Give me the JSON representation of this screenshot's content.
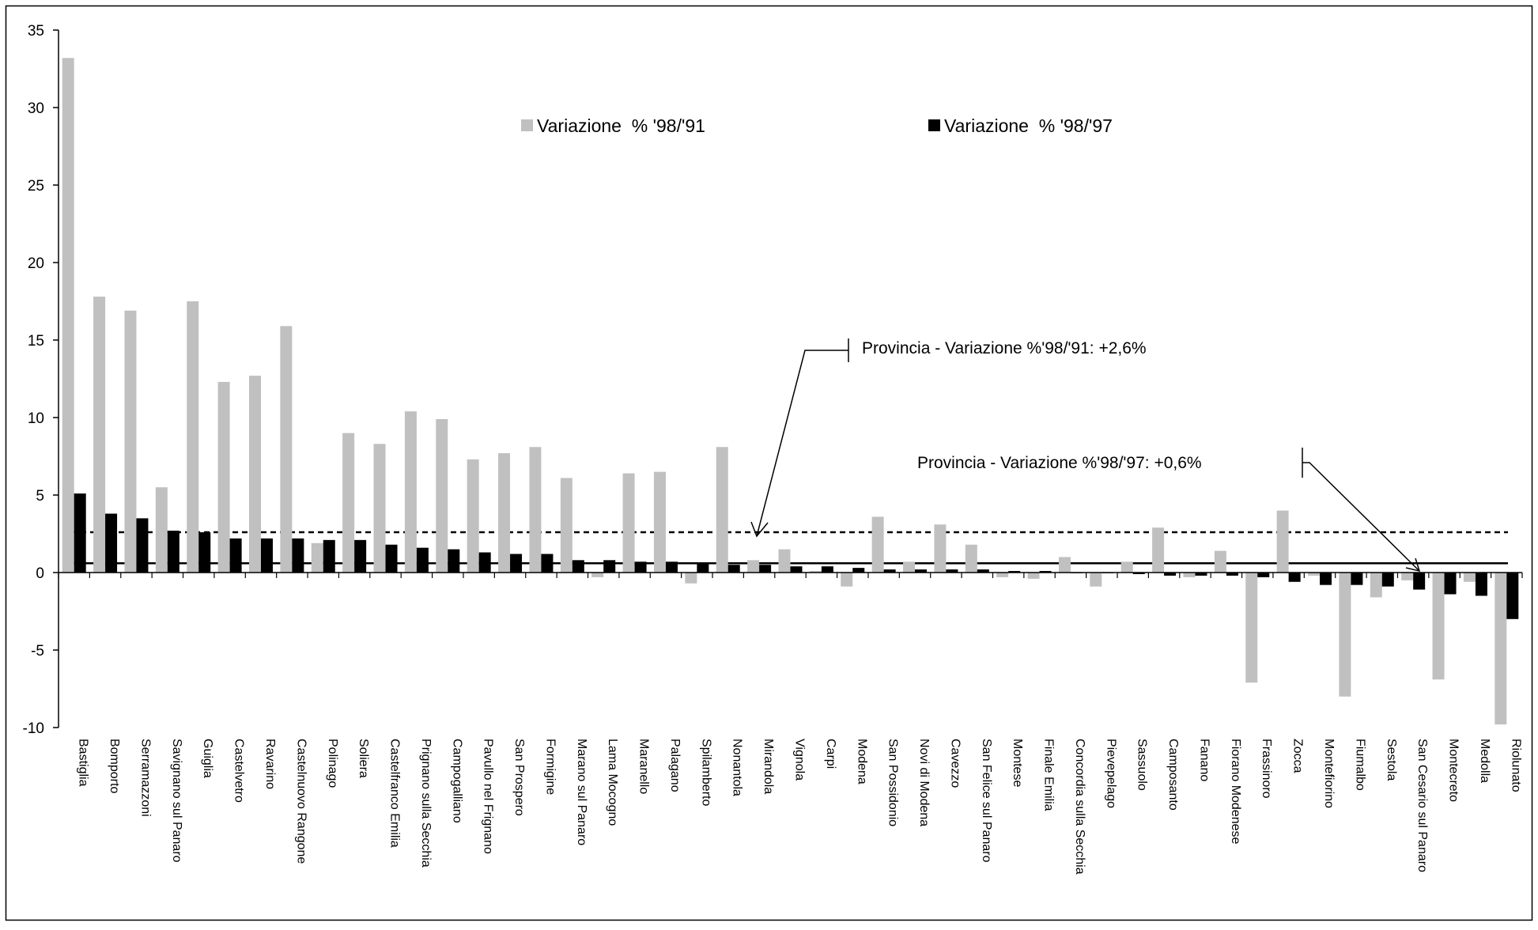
{
  "chart_data": {
    "type": "bar",
    "title": "",
    "xlabel": "",
    "ylabel": "",
    "ylim": [
      -10,
      35
    ],
    "yticks": [
      -10,
      -5,
      0,
      5,
      10,
      15,
      20,
      25,
      30,
      35
    ],
    "grid": false,
    "legend_position": "top-center",
    "colors": {
      "series1": "#c0c0c0",
      "series2": "#000000",
      "axis": "#000000"
    },
    "categories": [
      "Bastiglia",
      "Bomporto",
      "Serramazzoni",
      "Savignano sul Panaro",
      "Guiglia",
      "Castelvetro",
      "Ravarino",
      "Castelnuovo Rangone",
      "Polinago",
      "Soliera",
      "Castelfranco Emilia",
      "Prignano sulla Secchia",
      "Campogalliano",
      "Pavullo nel Frignano",
      "San Prospero",
      "Formigine",
      "Marano sul Panaro",
      "Lama Mocogno",
      "Maranello",
      "Palagano",
      "Spilamberto",
      "Nonantola",
      "Mirandola",
      "Vignola",
      "Carpi",
      "Modena",
      "San Possidonio",
      "Novi di Modena",
      "Cavezzo",
      "San Felice sul Panaro",
      "Montese",
      "Finale Emilia",
      "Concordia sulla Secchia",
      "Pievepelago",
      "Sassuolo",
      "Camposanto",
      "Fanano",
      "Fiorano Modenese",
      "Frassinoro",
      "Zocca",
      "Montefiorino",
      "Fiumalbo",
      "Sestola",
      "San Cesario sul Panaro",
      "Montecreto",
      "Medolla",
      "Riolunato"
    ],
    "series": [
      {
        "name": "Variazione  % '98/'91",
        "values": [
          33.2,
          17.8,
          16.9,
          5.5,
          17.5,
          12.3,
          12.7,
          15.9,
          1.9,
          9.0,
          8.3,
          10.4,
          9.9,
          7.3,
          7.7,
          8.1,
          6.1,
          -0.3,
          6.4,
          6.5,
          -0.7,
          8.1,
          0.8,
          1.5,
          0.1,
          -0.9,
          3.6,
          0.7,
          3.1,
          1.8,
          -0.3,
          -0.4,
          1.0,
          -0.9,
          0.7,
          2.9,
          -0.3,
          1.4,
          -7.1,
          4.0,
          -0.2,
          -8.0,
          -1.6,
          -0.5,
          -6.9,
          -0.6,
          -9.8
        ]
      },
      {
        "name": "Variazione  % '98/'97",
        "values": [
          5.1,
          3.8,
          3.5,
          2.7,
          2.6,
          2.2,
          2.2,
          2.2,
          2.1,
          2.1,
          1.8,
          1.6,
          1.5,
          1.3,
          1.2,
          1.2,
          0.8,
          0.8,
          0.7,
          0.7,
          0.6,
          0.5,
          0.5,
          0.4,
          0.4,
          0.3,
          0.2,
          0.2,
          0.2,
          0.2,
          0.1,
          0.1,
          0.0,
          0.0,
          -0.1,
          -0.2,
          -0.2,
          -0.2,
          -0.3,
          -0.6,
          -0.8,
          -0.8,
          -0.9,
          -1.1,
          -1.4,
          -1.5,
          -3.0
        ]
      }
    ],
    "reference_lines": [
      {
        "label": "Provincia - Variazione %'98/'91: +2,6%",
        "value": 2.6,
        "style": "dashed"
      },
      {
        "label": "Provincia - Variazione %'98/'97: +0,6%",
        "value": 0.6,
        "style": "solid"
      }
    ]
  }
}
